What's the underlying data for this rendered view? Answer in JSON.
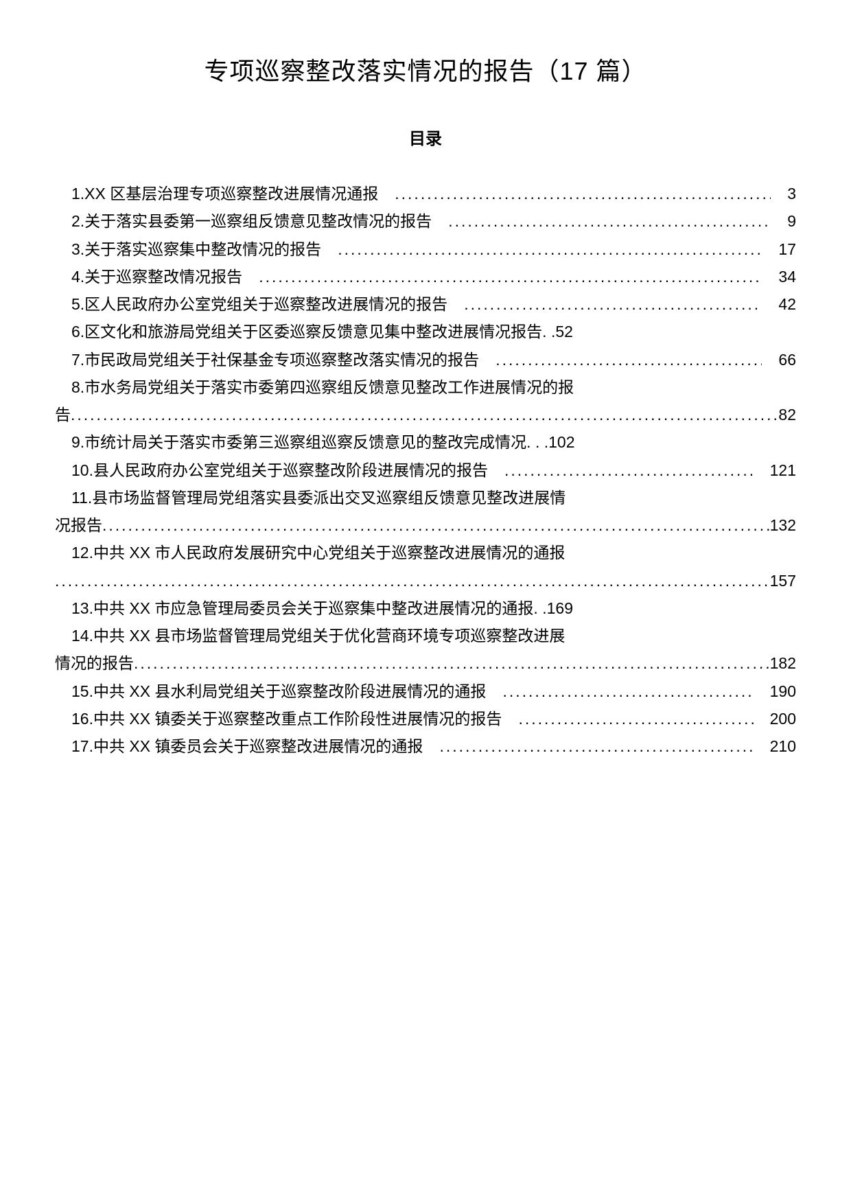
{
  "title": "专项巡察整改落实情况的报告（17 篇）",
  "subtitle": "目录",
  "typography": {
    "title_fontsize": 36,
    "subtitle_fontsize": 24,
    "body_fontsize": 23,
    "line_height": 1.75,
    "text_color": "#000000",
    "background_color": "#ffffff"
  },
  "toc": {
    "entries": [
      {
        "num": "1",
        "text": "1.XX 区基层治理专项巡察整改进展情况通报",
        "page": "3",
        "indent": true,
        "wrap": false
      },
      {
        "num": "2",
        "text": "2.关于落实县委第一巡察组反馈意见整改情况的报告",
        "page": "9",
        "indent": true,
        "wrap": false
      },
      {
        "num": "3",
        "text": "3.关于落实巡察集中整改情况的报告",
        "page": "17",
        "indent": true,
        "wrap": false
      },
      {
        "num": "4",
        "text": "4.关于巡察整改情况报告",
        "page": "34",
        "indent": true,
        "wrap": false
      },
      {
        "num": "5",
        "text": "5.区人民政府办公室党组关于巡察整改进展情况的报告",
        "page": "42",
        "indent": true,
        "wrap": false
      },
      {
        "num": "6",
        "text": "6.区文化和旅游局党组关于区委巡察反馈意见集中整改进展情况报告. .52",
        "page": "",
        "indent": true,
        "wrap": false,
        "no_dots": true
      },
      {
        "num": "7",
        "text": "7.市民政局党组关于社保基金专项巡察整改落实情况的报告",
        "page": "66",
        "indent": true,
        "wrap": false
      },
      {
        "num": "8",
        "text_line1": "8.市水务局党组关于落实市委第四巡察组反馈意见整改工作进展情况的报",
        "text_line2": "告",
        "page": "82",
        "indent": true,
        "wrap": true
      },
      {
        "num": "9",
        "text": "9.市统计局关于落实市委第三巡察组巡察反馈意见的整改完成情况. . .102",
        "page": "",
        "indent": true,
        "wrap": false,
        "no_dots": true
      },
      {
        "num": "10",
        "text": "10.县人民政府办公室党组关于巡察整改阶段进展情况的报告",
        "page": "121",
        "indent": true,
        "wrap": false
      },
      {
        "num": "11",
        "text_line1": "11.县市场监督管理局党组落实县委派出交叉巡察组反馈意见整改进展情",
        "text_line2": "况报告",
        "page": "132",
        "indent": true,
        "wrap": true
      },
      {
        "num": "12",
        "text_line1": "12.中共 XX 市人民政府发展研究中心党组关于巡察整改进展情况的通报",
        "text_line2": "",
        "page": "157",
        "indent": true,
        "wrap": true
      },
      {
        "num": "13",
        "text": "13.中共 XX 市应急管理局委员会关于巡察集中整改进展情况的通报. .169",
        "page": "",
        "indent": true,
        "wrap": false,
        "no_dots": true
      },
      {
        "num": "14",
        "text_line1": "14.中共 XX 县市场监督管理局党组关于优化营商环境专项巡察整改进展",
        "text_line2": "情况的报告",
        "page": "182",
        "indent": true,
        "wrap": true
      },
      {
        "num": "15",
        "text": "15.中共 XX 县水利局党组关于巡察整改阶段进展情况的通报",
        "page": "190",
        "indent": true,
        "wrap": false
      },
      {
        "num": "16",
        "text": "16.中共 XX 镇委关于巡察整改重点工作阶段性进展情况的报告",
        "page": "200",
        "indent": true,
        "wrap": false
      },
      {
        "num": "17",
        "text": "17.中共 XX 镇委员会关于巡察整改进展情况的通报",
        "page": "210",
        "indent": true,
        "wrap": false
      }
    ]
  }
}
